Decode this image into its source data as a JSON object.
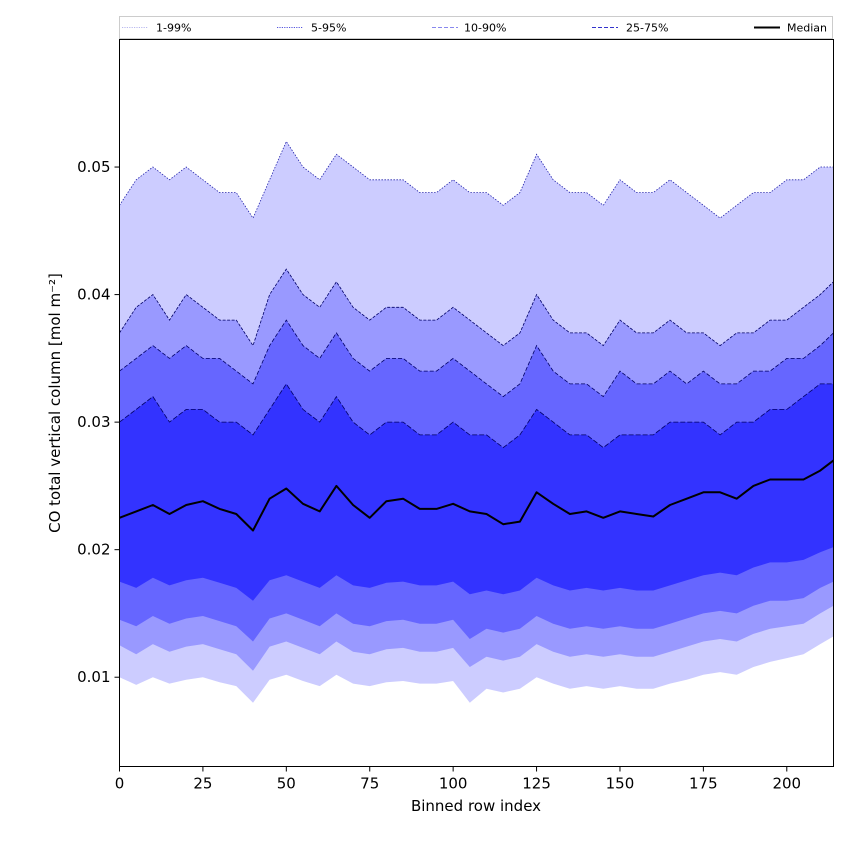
{
  "chart_data": {
    "type": "area",
    "title": "",
    "xlabel": "Binned row index",
    "ylabel": "CO total vertical column [mol m⁻²]",
    "xlim": [
      0,
      214
    ],
    "ylim": [
      0.003,
      0.06
    ],
    "xticks": [
      0,
      25,
      50,
      75,
      100,
      125,
      150,
      175,
      200
    ],
    "yticks": [
      0.01,
      0.02,
      0.03,
      0.04,
      0.05
    ],
    "ytick_labels": [
      "0.01",
      "0.02",
      "0.03",
      "0.04",
      "0.05"
    ],
    "xtick_labels": [
      "0",
      "25",
      "50",
      "75",
      "100",
      "125",
      "150",
      "175",
      "200"
    ],
    "legend_position": "top",
    "legend": [
      {
        "label": "1-99%",
        "style": "dotted",
        "color": "#b8b8ee"
      },
      {
        "label": "5-95%",
        "style": "dotted",
        "color": "#5555dd"
      },
      {
        "label": "10-90%",
        "style": "dashed",
        "color": "#8888ee"
      },
      {
        "label": "25-75%",
        "style": "dashed",
        "color": "#3333cc"
      },
      {
        "label": "Median",
        "style": "solid",
        "color": "#000000"
      }
    ],
    "band_colors": {
      "p1_99": "#ccccff",
      "p5_95": "#9999ff",
      "p10_90": "#6666ff",
      "p25_75": "#3333ff"
    },
    "x_knots": [
      0,
      5,
      10,
      15,
      20,
      25,
      30,
      35,
      40,
      45,
      50,
      55,
      60,
      65,
      70,
      75,
      80,
      85,
      90,
      95,
      100,
      105,
      110,
      115,
      120,
      125,
      130,
      135,
      140,
      145,
      150,
      155,
      160,
      165,
      170,
      175,
      180,
      185,
      190,
      195,
      200,
      205,
      210,
      214
    ],
    "series": [
      {
        "name": "99%",
        "values": [
          0.047,
          0.049,
          0.05,
          0.049,
          0.05,
          0.049,
          0.048,
          0.048,
          0.046,
          0.049,
          0.052,
          0.05,
          0.049,
          0.051,
          0.05,
          0.049,
          0.049,
          0.049,
          0.048,
          0.048,
          0.049,
          0.048,
          0.048,
          0.047,
          0.048,
          0.051,
          0.049,
          0.048,
          0.048,
          0.047,
          0.049,
          0.048,
          0.048,
          0.049,
          0.048,
          0.047,
          0.046,
          0.047,
          0.048,
          0.048,
          0.049,
          0.049,
          0.05,
          0.05
        ]
      },
      {
        "name": "95%",
        "values": [
          0.037,
          0.039,
          0.04,
          0.038,
          0.04,
          0.039,
          0.038,
          0.038,
          0.036,
          0.04,
          0.042,
          0.04,
          0.039,
          0.041,
          0.039,
          0.038,
          0.039,
          0.039,
          0.038,
          0.038,
          0.039,
          0.038,
          0.037,
          0.036,
          0.037,
          0.04,
          0.038,
          0.037,
          0.037,
          0.036,
          0.038,
          0.037,
          0.037,
          0.038,
          0.037,
          0.037,
          0.036,
          0.037,
          0.037,
          0.038,
          0.038,
          0.039,
          0.04,
          0.041
        ]
      },
      {
        "name": "90%",
        "values": [
          0.034,
          0.035,
          0.036,
          0.035,
          0.036,
          0.035,
          0.035,
          0.034,
          0.033,
          0.036,
          0.038,
          0.036,
          0.035,
          0.037,
          0.035,
          0.034,
          0.035,
          0.035,
          0.034,
          0.034,
          0.035,
          0.034,
          0.033,
          0.032,
          0.033,
          0.036,
          0.034,
          0.033,
          0.033,
          0.032,
          0.034,
          0.033,
          0.033,
          0.034,
          0.033,
          0.034,
          0.033,
          0.033,
          0.034,
          0.034,
          0.035,
          0.035,
          0.036,
          0.037
        ]
      },
      {
        "name": "75%",
        "values": [
          0.03,
          0.031,
          0.032,
          0.03,
          0.031,
          0.031,
          0.03,
          0.03,
          0.029,
          0.031,
          0.033,
          0.031,
          0.03,
          0.032,
          0.03,
          0.029,
          0.03,
          0.03,
          0.029,
          0.029,
          0.03,
          0.029,
          0.029,
          0.028,
          0.029,
          0.031,
          0.03,
          0.029,
          0.029,
          0.028,
          0.029,
          0.029,
          0.029,
          0.03,
          0.03,
          0.03,
          0.029,
          0.03,
          0.03,
          0.031,
          0.031,
          0.032,
          0.033,
          0.033
        ]
      },
      {
        "name": "Median",
        "values": [
          0.0225,
          0.023,
          0.0235,
          0.0228,
          0.0235,
          0.0238,
          0.0232,
          0.0228,
          0.0215,
          0.024,
          0.0248,
          0.0236,
          0.023,
          0.025,
          0.0235,
          0.0225,
          0.0238,
          0.024,
          0.0232,
          0.0232,
          0.0236,
          0.023,
          0.0228,
          0.022,
          0.0222,
          0.0245,
          0.0236,
          0.0228,
          0.023,
          0.0225,
          0.023,
          0.0228,
          0.0226,
          0.0235,
          0.024,
          0.0245,
          0.0245,
          0.024,
          0.025,
          0.0255,
          0.0255,
          0.0255,
          0.0262,
          0.027
        ]
      },
      {
        "name": "25%",
        "values": [
          0.0175,
          0.017,
          0.0178,
          0.0172,
          0.0176,
          0.0178,
          0.0174,
          0.017,
          0.016,
          0.0176,
          0.018,
          0.0175,
          0.017,
          0.018,
          0.0172,
          0.017,
          0.0174,
          0.0175,
          0.0172,
          0.0172,
          0.0175,
          0.0165,
          0.0168,
          0.0165,
          0.0168,
          0.0178,
          0.0172,
          0.0168,
          0.017,
          0.0168,
          0.017,
          0.0168,
          0.0168,
          0.0172,
          0.0176,
          0.018,
          0.0182,
          0.018,
          0.0186,
          0.019,
          0.019,
          0.0192,
          0.0198,
          0.0202
        ]
      },
      {
        "name": "10%",
        "values": [
          0.0145,
          0.014,
          0.0148,
          0.0142,
          0.0146,
          0.0148,
          0.0144,
          0.014,
          0.0128,
          0.0146,
          0.015,
          0.0145,
          0.014,
          0.015,
          0.0142,
          0.014,
          0.0144,
          0.0145,
          0.0142,
          0.0142,
          0.0145,
          0.013,
          0.0138,
          0.0135,
          0.0138,
          0.0148,
          0.0142,
          0.0138,
          0.014,
          0.0138,
          0.014,
          0.0138,
          0.0138,
          0.0142,
          0.0146,
          0.015,
          0.0152,
          0.015,
          0.0156,
          0.016,
          0.016,
          0.0162,
          0.017,
          0.0175
        ]
      },
      {
        "name": "5%",
        "values": [
          0.0125,
          0.0118,
          0.0126,
          0.012,
          0.0124,
          0.0126,
          0.0122,
          0.0118,
          0.0105,
          0.0124,
          0.0128,
          0.0123,
          0.0118,
          0.0128,
          0.012,
          0.0118,
          0.0122,
          0.0123,
          0.012,
          0.012,
          0.0123,
          0.0108,
          0.0116,
          0.0113,
          0.0116,
          0.0126,
          0.012,
          0.0116,
          0.0118,
          0.0116,
          0.0118,
          0.0116,
          0.0116,
          0.012,
          0.0124,
          0.0128,
          0.013,
          0.0128,
          0.0134,
          0.0138,
          0.014,
          0.0142,
          0.015,
          0.0156
        ]
      },
      {
        "name": "1%",
        "values": [
          0.01,
          0.0094,
          0.01,
          0.0095,
          0.0098,
          0.01,
          0.0096,
          0.0093,
          0.008,
          0.0098,
          0.0102,
          0.0097,
          0.0093,
          0.0102,
          0.0095,
          0.0093,
          0.0096,
          0.0097,
          0.0095,
          0.0095,
          0.0097,
          0.008,
          0.0091,
          0.0088,
          0.0091,
          0.01,
          0.0095,
          0.0091,
          0.0093,
          0.0091,
          0.0093,
          0.0091,
          0.0091,
          0.0095,
          0.0098,
          0.0102,
          0.0104,
          0.0102,
          0.0108,
          0.0112,
          0.0115,
          0.0118,
          0.0126,
          0.0132
        ]
      }
    ]
  }
}
